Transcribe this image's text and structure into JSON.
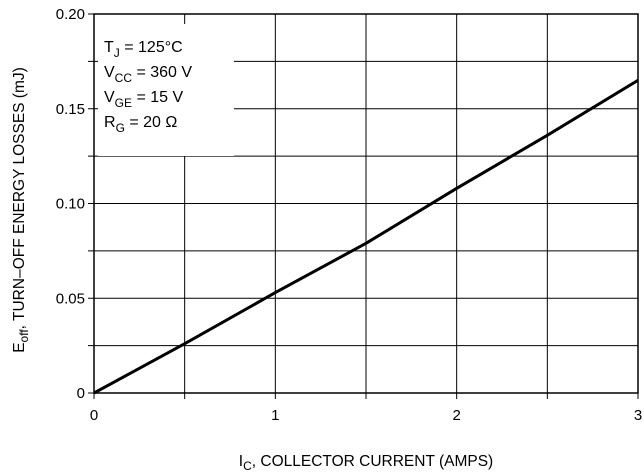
{
  "chart_data": {
    "type": "line",
    "xlabel": {
      "main": "I",
      "sub": "C",
      "rest": ", COLLECTOR CURRENT (AMPS)"
    },
    "ylabel": {
      "main": "E",
      "sub": "off",
      "rest": ", TURN–OFF ENERGY LOSSES (mJ)"
    },
    "xlim": [
      0,
      3
    ],
    "ylim": [
      0,
      0.2
    ],
    "x_ticks": [
      0,
      0.5,
      1,
      1.5,
      2,
      2.5,
      3
    ],
    "x_tick_labels": [
      "0",
      "",
      "1",
      "",
      "2",
      "",
      "3"
    ],
    "y_ticks": [
      0,
      0.025,
      0.05,
      0.075,
      0.1,
      0.125,
      0.15,
      0.175,
      0.2
    ],
    "y_tick_labels": [
      "0",
      "",
      "0.05",
      "",
      "0.10",
      "",
      "0.15",
      "",
      "0.20"
    ],
    "grid": true,
    "conditions": [
      {
        "main": "T",
        "sub": "J",
        "rest": " = 125°C"
      },
      {
        "main": "V",
        "sub": "CC",
        "rest": " = 360 V"
      },
      {
        "main": "V",
        "sub": "GE",
        "rest": " = 15 V"
      },
      {
        "main": "R",
        "sub": "G",
        "rest": " = 20 Ω"
      }
    ],
    "series": [
      {
        "x": [
          0,
          0.5,
          1.0,
          1.5,
          2.0,
          2.5,
          3.0
        ],
        "y": [
          0,
          0.026,
          0.053,
          0.079,
          0.108,
          0.136,
          0.165
        ]
      }
    ]
  }
}
